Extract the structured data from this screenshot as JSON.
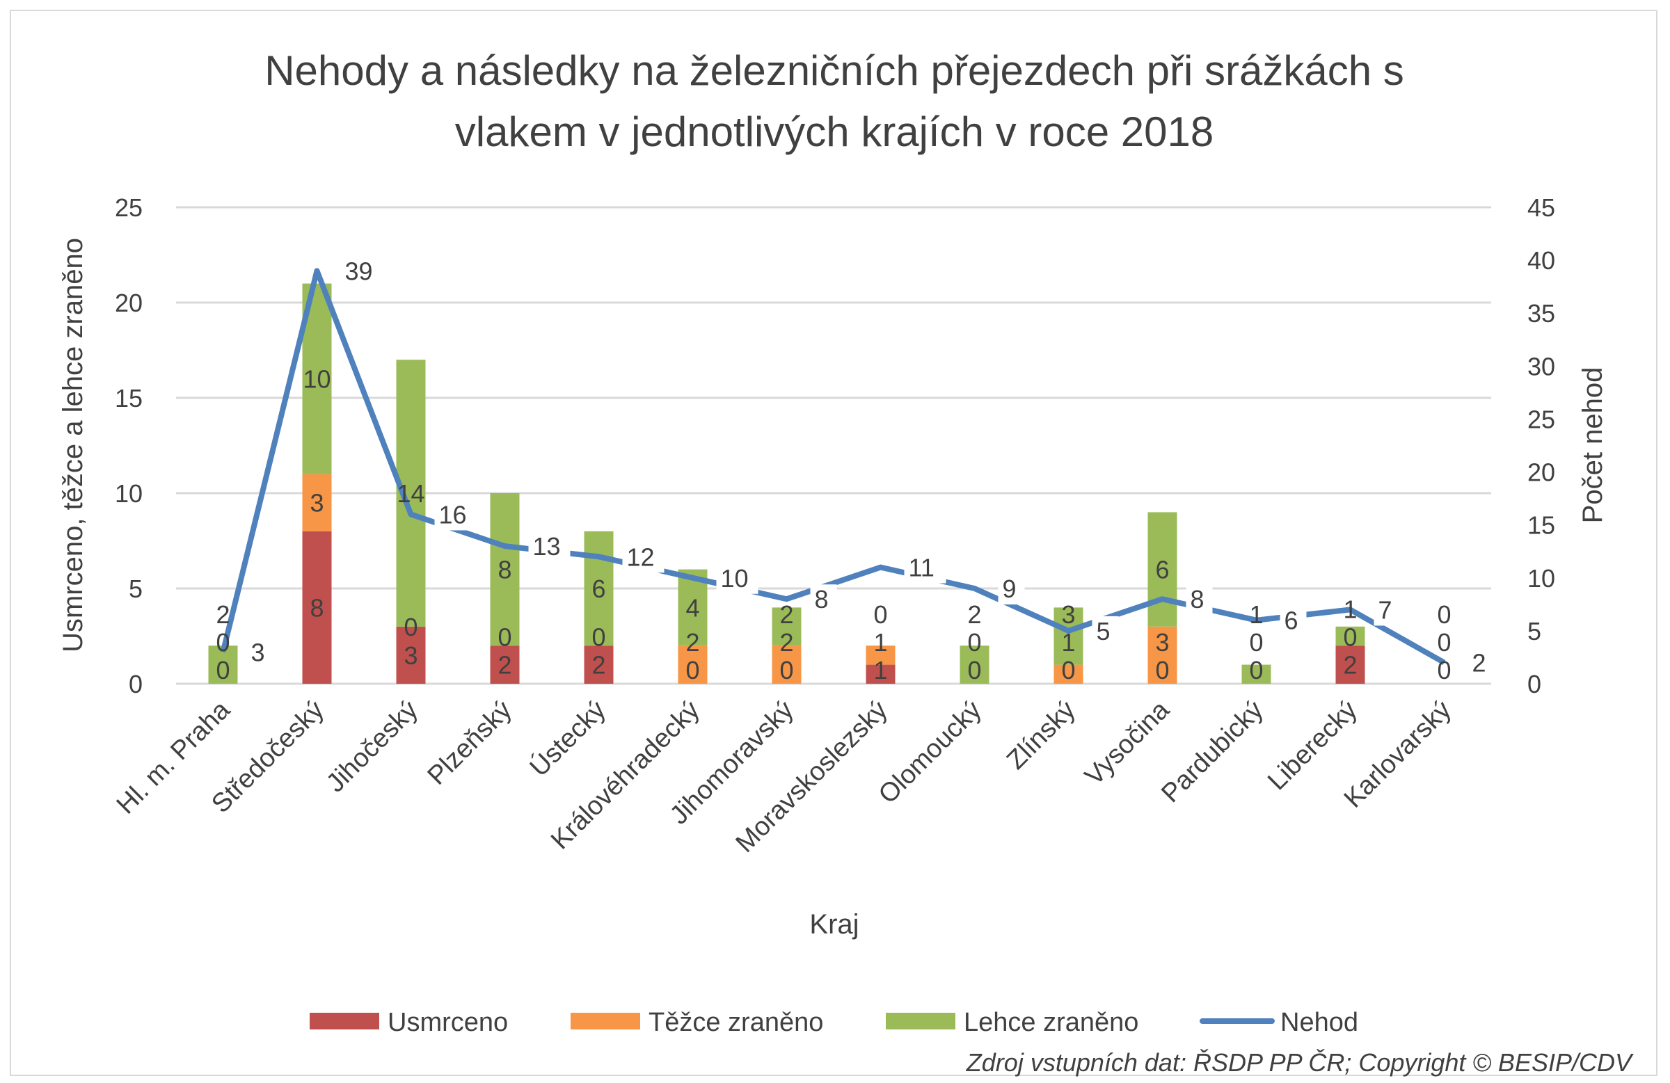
{
  "chart_data": {
    "type": "bar",
    "stacked": true,
    "title": "Nehody a následky na železničních přejezdech při srážkách s vlakem v jednotlivých krajích v roce 2018",
    "title_lines": [
      "Nehody a následky na železničních přejezdech při srážkách s",
      "vlakem v jednotlivých krajích v roce 2018"
    ],
    "xlabel": "Kraj",
    "ylabel": "Usmrceno, těžce a lehce zraněno",
    "y2label": "Počet nehod",
    "ylim": [
      0,
      25
    ],
    "yticks": [
      0,
      5,
      10,
      15,
      20,
      25
    ],
    "y2lim": [
      0,
      45
    ],
    "y2ticks": [
      0,
      5,
      10,
      15,
      20,
      25,
      30,
      35,
      40,
      45
    ],
    "grid": true,
    "legend_position": "bottom",
    "categories": [
      "Hl. m. Praha",
      "Středočeský",
      "Jihočeský",
      "Plzeňský",
      "Ústecký",
      "Královéhradecký",
      "Jihomoravský",
      "Moravskoslezský",
      "Olomoucký",
      "Zlínský",
      "Vysočina",
      "Pardubický",
      "Liberecký",
      "Karlovarský"
    ],
    "series": [
      {
        "name": "Usmrceno",
        "type": "bar",
        "axis": "left",
        "color": "#C0504D",
        "values": [
          0,
          8,
          3,
          2,
          2,
          0,
          0,
          1,
          0,
          0,
          0,
          0,
          2,
          0
        ]
      },
      {
        "name": "Těžce zraněno",
        "type": "bar",
        "axis": "left",
        "color": "#F79646",
        "values": [
          0,
          3,
          0,
          0,
          0,
          2,
          2,
          1,
          0,
          1,
          3,
          0,
          0,
          0
        ]
      },
      {
        "name": "Lehce zraněno",
        "type": "bar",
        "axis": "left",
        "color": "#9BBB59",
        "values": [
          2,
          10,
          14,
          8,
          6,
          4,
          2,
          0,
          2,
          3,
          6,
          1,
          1,
          0
        ]
      },
      {
        "name": "Nehod",
        "type": "line",
        "axis": "right",
        "color": "#4F81BD",
        "values": [
          3,
          39,
          16,
          13,
          12,
          10,
          8,
          11,
          9,
          5,
          8,
          6,
          7,
          2
        ]
      }
    ],
    "source_note": "Zdroj vstupních dat: ŘSDP PP ČR; Copyright © BESIP/CDV"
  }
}
